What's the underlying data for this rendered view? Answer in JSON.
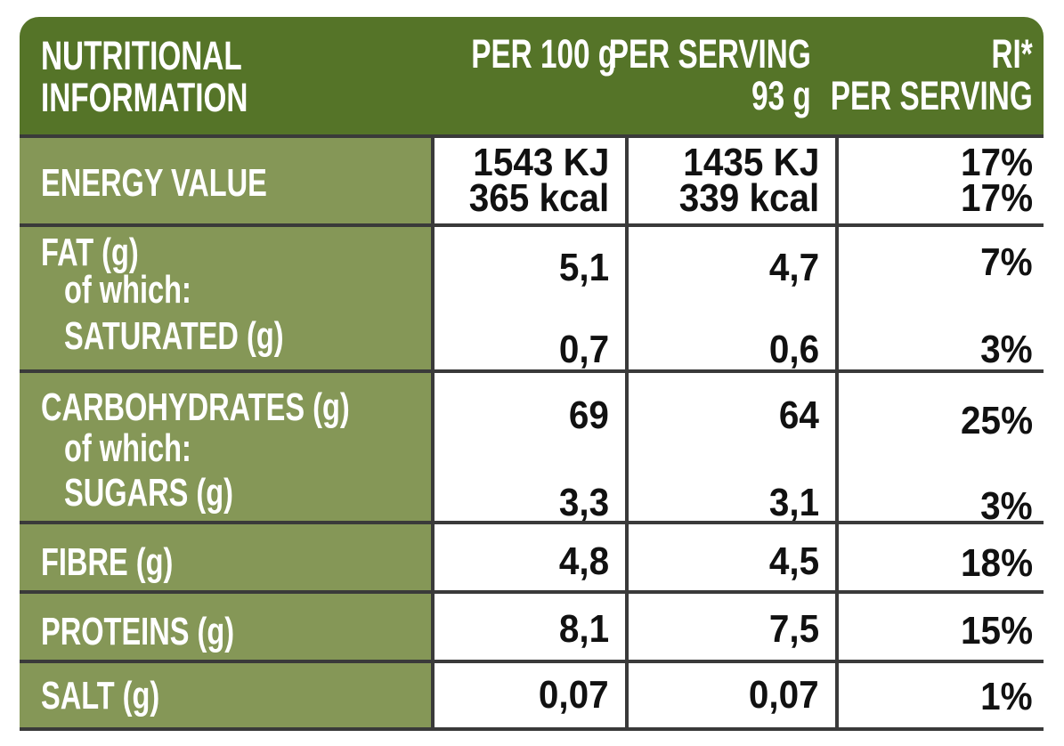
{
  "header": {
    "title_line1": "NUTRITIONAL",
    "title_line2": "INFORMATION",
    "col1": "PER 100 g",
    "col2_line1": "PER SERVING",
    "col2_line2": "93 g",
    "col3_line1": "RI*",
    "col3_line2": "PER SERVING"
  },
  "rows": {
    "energy": {
      "label": "ENERGY VALUE",
      "per100_kj": "1543 KJ",
      "per100_kcal": "365 kcal",
      "serving_kj": "1435 KJ",
      "serving_kcal": "339 kcal",
      "ri_kj": "17%",
      "ri_kcal": "17%"
    },
    "fat": {
      "label": "FAT (g)",
      "per100": "5,1",
      "serving": "4,7",
      "ri": "7%",
      "sub_intro": "of which:",
      "sub_label": "SATURATED (g)",
      "sub_per100": "0,7",
      "sub_serving": "0,6",
      "sub_ri": "3%"
    },
    "carbs": {
      "label": "CARBOHYDRATES (g)",
      "per100": "69",
      "serving": "64",
      "ri": "25%",
      "sub_intro": "of which:",
      "sub_label": "SUGARS (g)",
      "sub_per100": "3,3",
      "sub_serving": "3,1",
      "sub_ri": "3%"
    },
    "fibre": {
      "label": "FIBRE (g)",
      "per100": "4,8",
      "serving": "4,5",
      "ri": "18%"
    },
    "proteins": {
      "label": "PROTEINS (g)",
      "per100": "8,1",
      "serving": "7,5",
      "ri": "15%"
    },
    "salt": {
      "label": "SALT (g)",
      "per100": "0,07",
      "serving": "0,07",
      "ri": "1%"
    }
  },
  "colors": {
    "header_bg": "#557428",
    "label_bg": "#859757",
    "grid": "#3a3a3a",
    "text_light": "#ffffff",
    "text_dark": "#111111"
  }
}
